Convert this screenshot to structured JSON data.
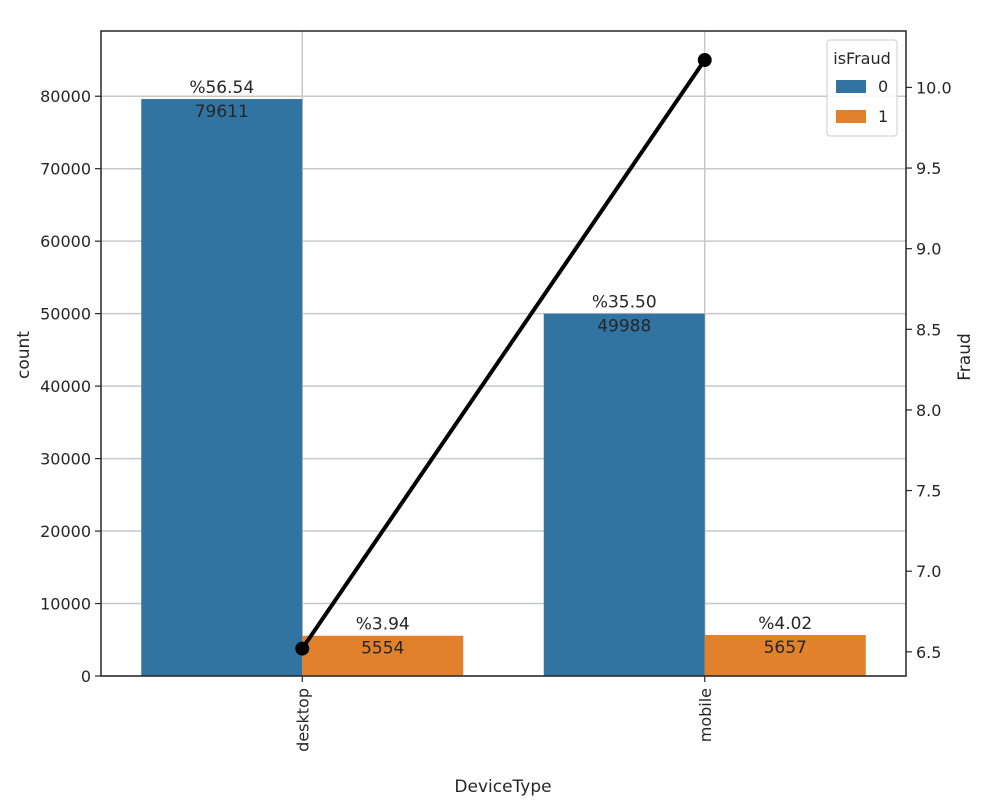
{
  "chart_data": {
    "type": "bar",
    "xlabel": "DeviceType",
    "ylabel": "count",
    "y2label": "Fraud",
    "categories": [
      "desktop",
      "mobile"
    ],
    "ylim": [
      0,
      89000
    ],
    "yticks": [
      0,
      10000,
      20000,
      30000,
      40000,
      50000,
      60000,
      70000,
      80000
    ],
    "y2lim": [
      6.35,
      10.35
    ],
    "y2ticks": [
      "6.5",
      "7.0",
      "7.5",
      "8.0",
      "8.5",
      "9.0",
      "9.5",
      "10.0"
    ],
    "legend_title": "isFraud",
    "legend_placement": "top-right",
    "grid": true,
    "series": [
      {
        "name": "0",
        "color": "#3274a1",
        "values": [
          79611,
          49988
        ],
        "percent_labels": [
          "%56.54",
          "%35.50"
        ]
      },
      {
        "name": "1",
        "color": "#e1812c",
        "values": [
          5554,
          5657
        ],
        "percent_labels": [
          "%3.94",
          "%4.02"
        ]
      }
    ],
    "line_series": {
      "axis": "right",
      "color": "#000000",
      "x": [
        "desktop",
        "mobile"
      ],
      "values": [
        6.52,
        10.17
      ]
    }
  }
}
